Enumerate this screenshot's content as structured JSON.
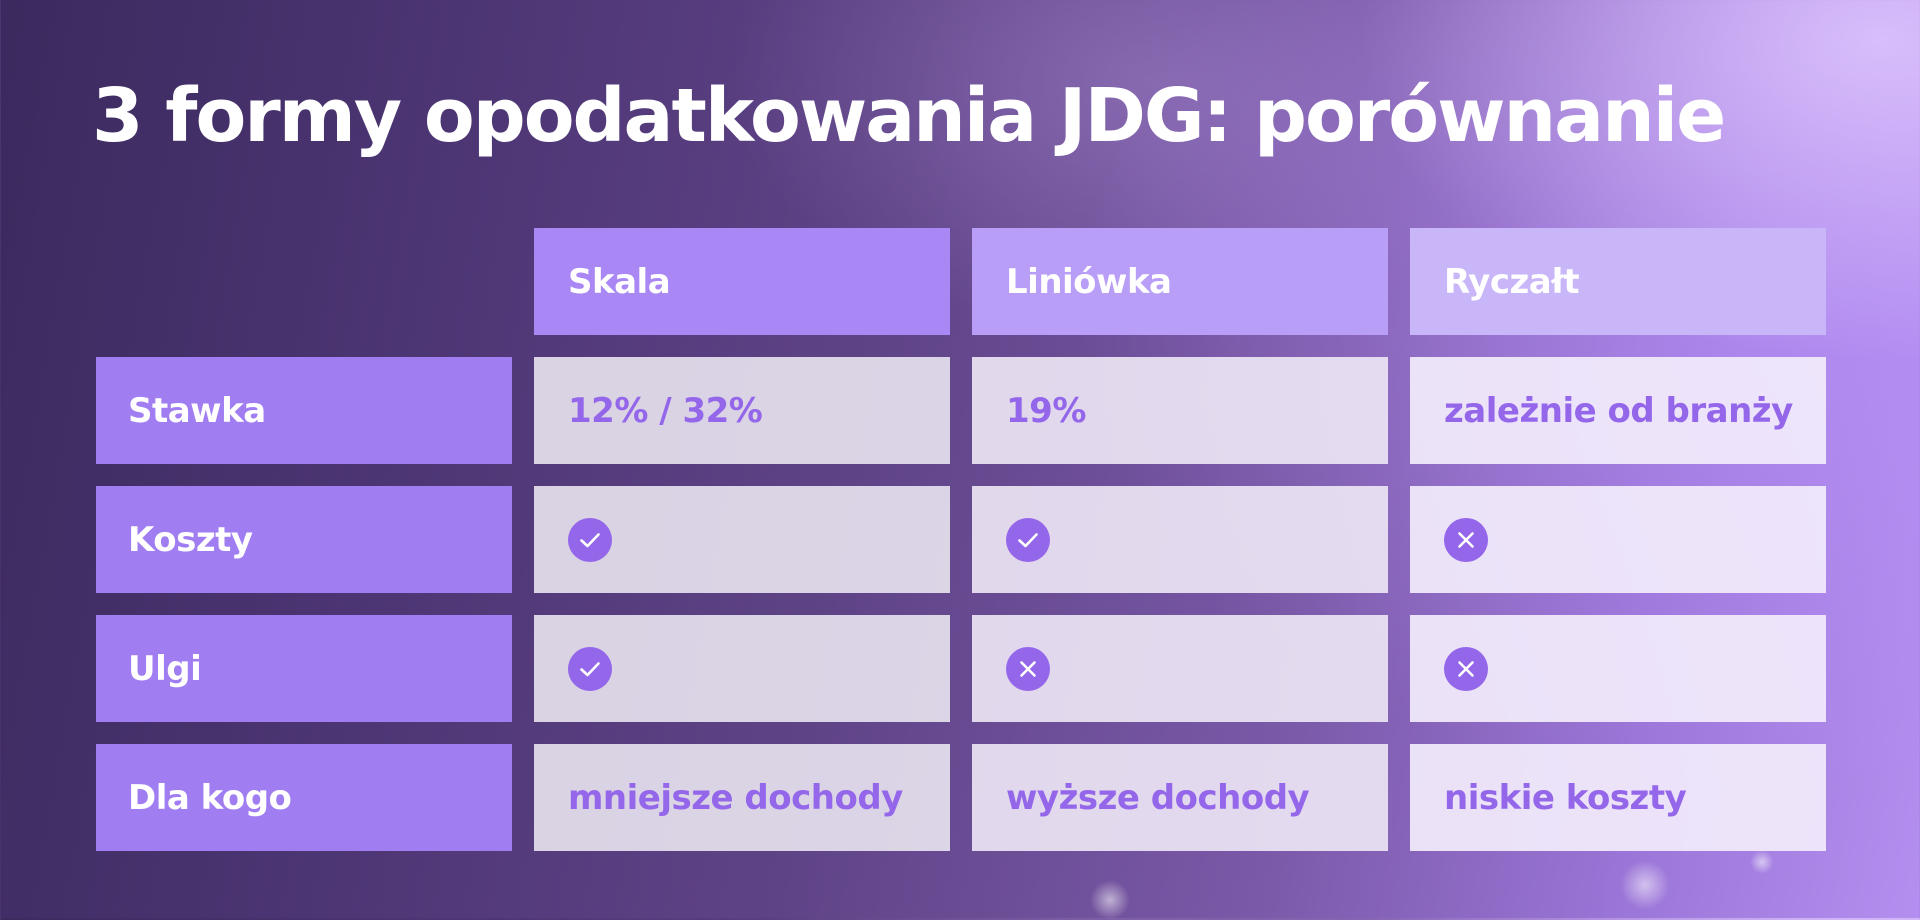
{
  "title": "3 formy opodatkowania JDG: porównanie",
  "columns": [
    "Skala",
    "Liniówka",
    "Ryczałt"
  ],
  "rows": [
    {
      "label": "Stawka",
      "cells": [
        {
          "type": "text",
          "text": "12% / 32%"
        },
        {
          "type": "text",
          "text": "19%"
        },
        {
          "type": "text",
          "text": "zależnie od branży"
        }
      ]
    },
    {
      "label": "Koszty",
      "cells": [
        {
          "type": "icon",
          "icon": "check-icon"
        },
        {
          "type": "icon",
          "icon": "check-icon"
        },
        {
          "type": "icon",
          "icon": "x-icon"
        }
      ]
    },
    {
      "label": "Ulgi",
      "cells": [
        {
          "type": "icon",
          "icon": "check-icon"
        },
        {
          "type": "icon",
          "icon": "x-icon"
        },
        {
          "type": "icon",
          "icon": "x-icon"
        }
      ]
    },
    {
      "label": "Dla kogo",
      "cells": [
        {
          "type": "text",
          "text": "mniejsze dochody"
        },
        {
          "type": "text",
          "text": "wyższe dochody"
        },
        {
          "type": "text",
          "text": "niskie koszty"
        }
      ]
    }
  ],
  "colors": {
    "accent": "#9466ea",
    "header_row": "#a07ef2",
    "icon_fill": "#9466ea"
  }
}
